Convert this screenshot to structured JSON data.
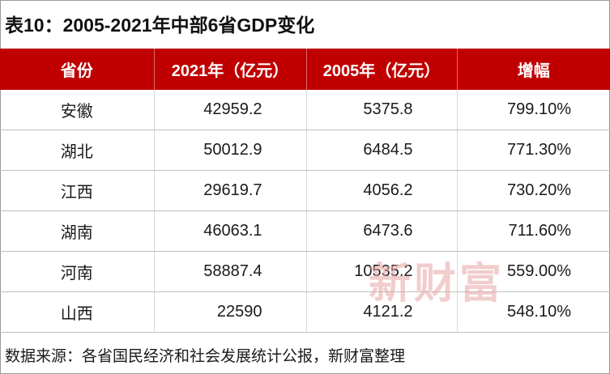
{
  "title": "表10：2005-2021年中部6省GDP变化",
  "table": {
    "headers": [
      "省份",
      "2021年（亿元）",
      "2005年（亿元）",
      "增幅"
    ],
    "rows": [
      {
        "province": "安徽",
        "gdp2021": "42959.2",
        "gdp2005": "5375.8",
        "growth": "799.10%"
      },
      {
        "province": "湖北",
        "gdp2021": "50012.9",
        "gdp2005": "6484.5",
        "growth": "771.30%"
      },
      {
        "province": "江西",
        "gdp2021": "29619.7",
        "gdp2005": "4056.2",
        "growth": "730.20%"
      },
      {
        "province": "湖南",
        "gdp2021": "46063.1",
        "gdp2005": "6473.6",
        "growth": "711.60%"
      },
      {
        "province": "河南",
        "gdp2021": "58887.4",
        "gdp2005": "10535.2",
        "growth": "559.00%"
      },
      {
        "province": "山西",
        "gdp2021": "22590",
        "gdp2005": "4121.2",
        "growth": "548.10%"
      }
    ]
  },
  "watermark": "新财富",
  "source": "数据来源：各省国民经济和社会发展统计公报，新财富整理",
  "colors": {
    "header_bg": "#c00000",
    "header_text": "#ffffff",
    "watermark": "#e9a5a5"
  }
}
